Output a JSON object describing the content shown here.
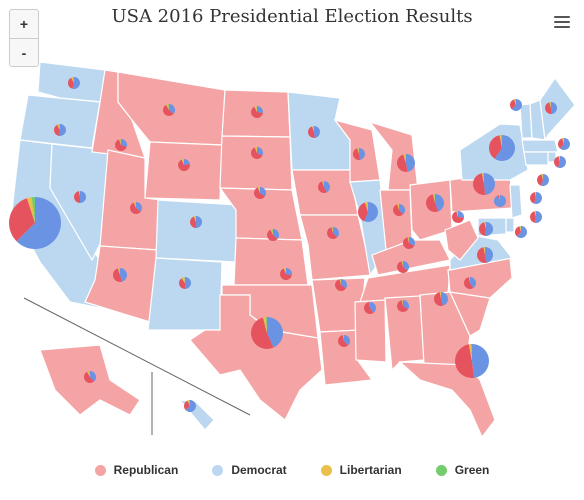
{
  "title": "USA 2016 Presidential Election Results",
  "zoom": {
    "in_label": "+",
    "out_label": "-"
  },
  "menu_icon": "hamburger-menu-icon",
  "colors": {
    "republican_fill": "#f4a4a4",
    "democrat_fill": "#bcd8f0",
    "republican_pie": "#e5545e",
    "democrat_pie": "#6a93e4",
    "libertarian_pie": "#e8c04a",
    "green_pie": "#74cc6c"
  },
  "legend": [
    {
      "label": "Republican",
      "color": "#f4a4a4"
    },
    {
      "label": "Democrat",
      "color": "#bcd8f0"
    },
    {
      "label": "Libertarian",
      "color": "#e8c04a"
    },
    {
      "label": "Green",
      "color": "#74cc6c"
    }
  ],
  "states": [
    {
      "id": "WA",
      "winner": "D",
      "r": 38,
      "d": 54,
      "l": 5,
      "g": 3
    },
    {
      "id": "OR",
      "winner": "D",
      "r": 39,
      "d": 50,
      "l": 5,
      "g": 3
    },
    {
      "id": "CA",
      "winner": "D",
      "r": 32,
      "d": 62,
      "l": 3,
      "g": 2
    },
    {
      "id": "NV",
      "winner": "D",
      "r": 45,
      "d": 48,
      "l": 3,
      "g": 0
    },
    {
      "id": "ID",
      "winner": "R",
      "r": 59,
      "d": 28,
      "l": 4,
      "g": 1
    },
    {
      "id": "MT",
      "winner": "R",
      "r": 56,
      "d": 36,
      "l": 6,
      "g": 2
    },
    {
      "id": "WY",
      "winner": "R",
      "r": 68,
      "d": 22,
      "l": 5,
      "g": 1
    },
    {
      "id": "UT",
      "winner": "R",
      "r": 46,
      "d": 28,
      "l": 4,
      "g": 1
    },
    {
      "id": "AZ",
      "winner": "R",
      "r": 49,
      "d": 45,
      "l": 4,
      "g": 1
    },
    {
      "id": "CO",
      "winner": "D",
      "r": 43,
      "d": 48,
      "l": 5,
      "g": 1
    },
    {
      "id": "NM",
      "winner": "D",
      "r": 40,
      "d": 48,
      "l": 9,
      "g": 1
    },
    {
      "id": "ND",
      "winner": "R",
      "r": 63,
      "d": 27,
      "l": 6,
      "g": 1
    },
    {
      "id": "SD",
      "winner": "R",
      "r": 62,
      "d": 32,
      "l": 6,
      "g": 0
    },
    {
      "id": "NE",
      "winner": "R",
      "r": 59,
      "d": 34,
      "l": 5,
      "g": 1
    },
    {
      "id": "KS",
      "winner": "R",
      "r": 57,
      "d": 36,
      "l": 5,
      "g": 2
    },
    {
      "id": "OK",
      "winner": "R",
      "r": 65,
      "d": 29,
      "l": 6,
      "g": 0
    },
    {
      "id": "TX",
      "winner": "R",
      "r": 52,
      "d": 43,
      "l": 3,
      "g": 1
    },
    {
      "id": "MN",
      "winner": "D",
      "r": 45,
      "d": 46,
      "l": 4,
      "g": 1
    },
    {
      "id": "IA",
      "winner": "R",
      "r": 51,
      "d": 42,
      "l": 4,
      "g": 1
    },
    {
      "id": "MO",
      "winner": "R",
      "r": 57,
      "d": 38,
      "l": 3,
      "g": 1
    },
    {
      "id": "AR",
      "winner": "R",
      "r": 60,
      "d": 34,
      "l": 3,
      "g": 1
    },
    {
      "id": "LA",
      "winner": "R",
      "r": 58,
      "d": 38,
      "l": 2,
      "g": 1
    },
    {
      "id": "WI",
      "winner": "R",
      "r": 47,
      "d": 46,
      "l": 4,
      "g": 1
    },
    {
      "id": "IL",
      "winner": "D",
      "r": 39,
      "d": 56,
      "l": 4,
      "g": 1
    },
    {
      "id": "MI",
      "winner": "R",
      "r": 47,
      "d": 47,
      "l": 4,
      "g": 1
    },
    {
      "id": "IN",
      "winner": "R",
      "r": 57,
      "d": 38,
      "l": 5,
      "g": 0
    },
    {
      "id": "OH",
      "winner": "R",
      "r": 52,
      "d": 44,
      "l": 3,
      "g": 1
    },
    {
      "id": "KY",
      "winner": "R",
      "r": 63,
      "d": 33,
      "l": 3,
      "g": 1
    },
    {
      "id": "TN",
      "winner": "R",
      "r": 61,
      "d": 35,
      "l": 3,
      "g": 1
    },
    {
      "id": "MS",
      "winner": "R",
      "r": 58,
      "d": 40,
      "l": 1,
      "g": 1
    },
    {
      "id": "AL",
      "winner": "R",
      "r": 62,
      "d": 34,
      "l": 2,
      "g": 1
    },
    {
      "id": "GA",
      "winner": "R",
      "r": 51,
      "d": 46,
      "l": 3,
      "g": 0
    },
    {
      "id": "FL",
      "winner": "R",
      "r": 49,
      "d": 48,
      "l": 2,
      "g": 1
    },
    {
      "id": "SC",
      "winner": "R",
      "r": 55,
      "d": 41,
      "l": 2,
      "g": 1
    },
    {
      "id": "NC",
      "winner": "R",
      "r": 50,
      "d": 46,
      "l": 3,
      "g": 0
    },
    {
      "id": "VA",
      "winner": "D",
      "r": 44,
      "d": 50,
      "l": 3,
      "g": 1
    },
    {
      "id": "WV",
      "winner": "R",
      "r": 69,
      "d": 26,
      "l": 3,
      "g": 1
    },
    {
      "id": "PA",
      "winner": "R",
      "r": 48,
      "d": 48,
      "l": 2,
      "g": 1
    },
    {
      "id": "NY",
      "winner": "D",
      "r": 37,
      "d": 59,
      "l": 2,
      "g": 1
    },
    {
      "id": "VT",
      "winner": "D",
      "r": 30,
      "d": 57,
      "l": 3,
      "g": 2
    },
    {
      "id": "NH",
      "winner": "D",
      "r": 47,
      "d": 48,
      "l": 4,
      "g": 1
    },
    {
      "id": "ME",
      "winner": "D",
      "r": 45,
      "d": 48,
      "l": 5,
      "g": 2
    },
    {
      "id": "MA",
      "winner": "D",
      "r": 33,
      "d": 60,
      "l": 4,
      "g": 1
    },
    {
      "id": "RI",
      "winner": "D",
      "r": 39,
      "d": 54,
      "l": 3,
      "g": 1
    },
    {
      "id": "CT",
      "winner": "D",
      "r": 41,
      "d": 55,
      "l": 3,
      "g": 1
    },
    {
      "id": "NJ",
      "winner": "D",
      "r": 41,
      "d": 55,
      "l": 2,
      "g": 1
    },
    {
      "id": "DE",
      "winner": "D",
      "r": 42,
      "d": 53,
      "l": 3,
      "g": 1
    },
    {
      "id": "MD",
      "winner": "D",
      "r": 34,
      "d": 60,
      "l": 3,
      "g": 1
    },
    {
      "id": "DC",
      "winner": "D",
      "r": 4,
      "d": 91,
      "l": 2,
      "g": 1
    },
    {
      "id": "AK",
      "winner": "R",
      "r": 51,
      "d": 37,
      "l": 6,
      "g": 2
    },
    {
      "id": "HI",
      "winner": "D",
      "r": 30,
      "d": 62,
      "l": 4,
      "g": 3
    }
  ]
}
